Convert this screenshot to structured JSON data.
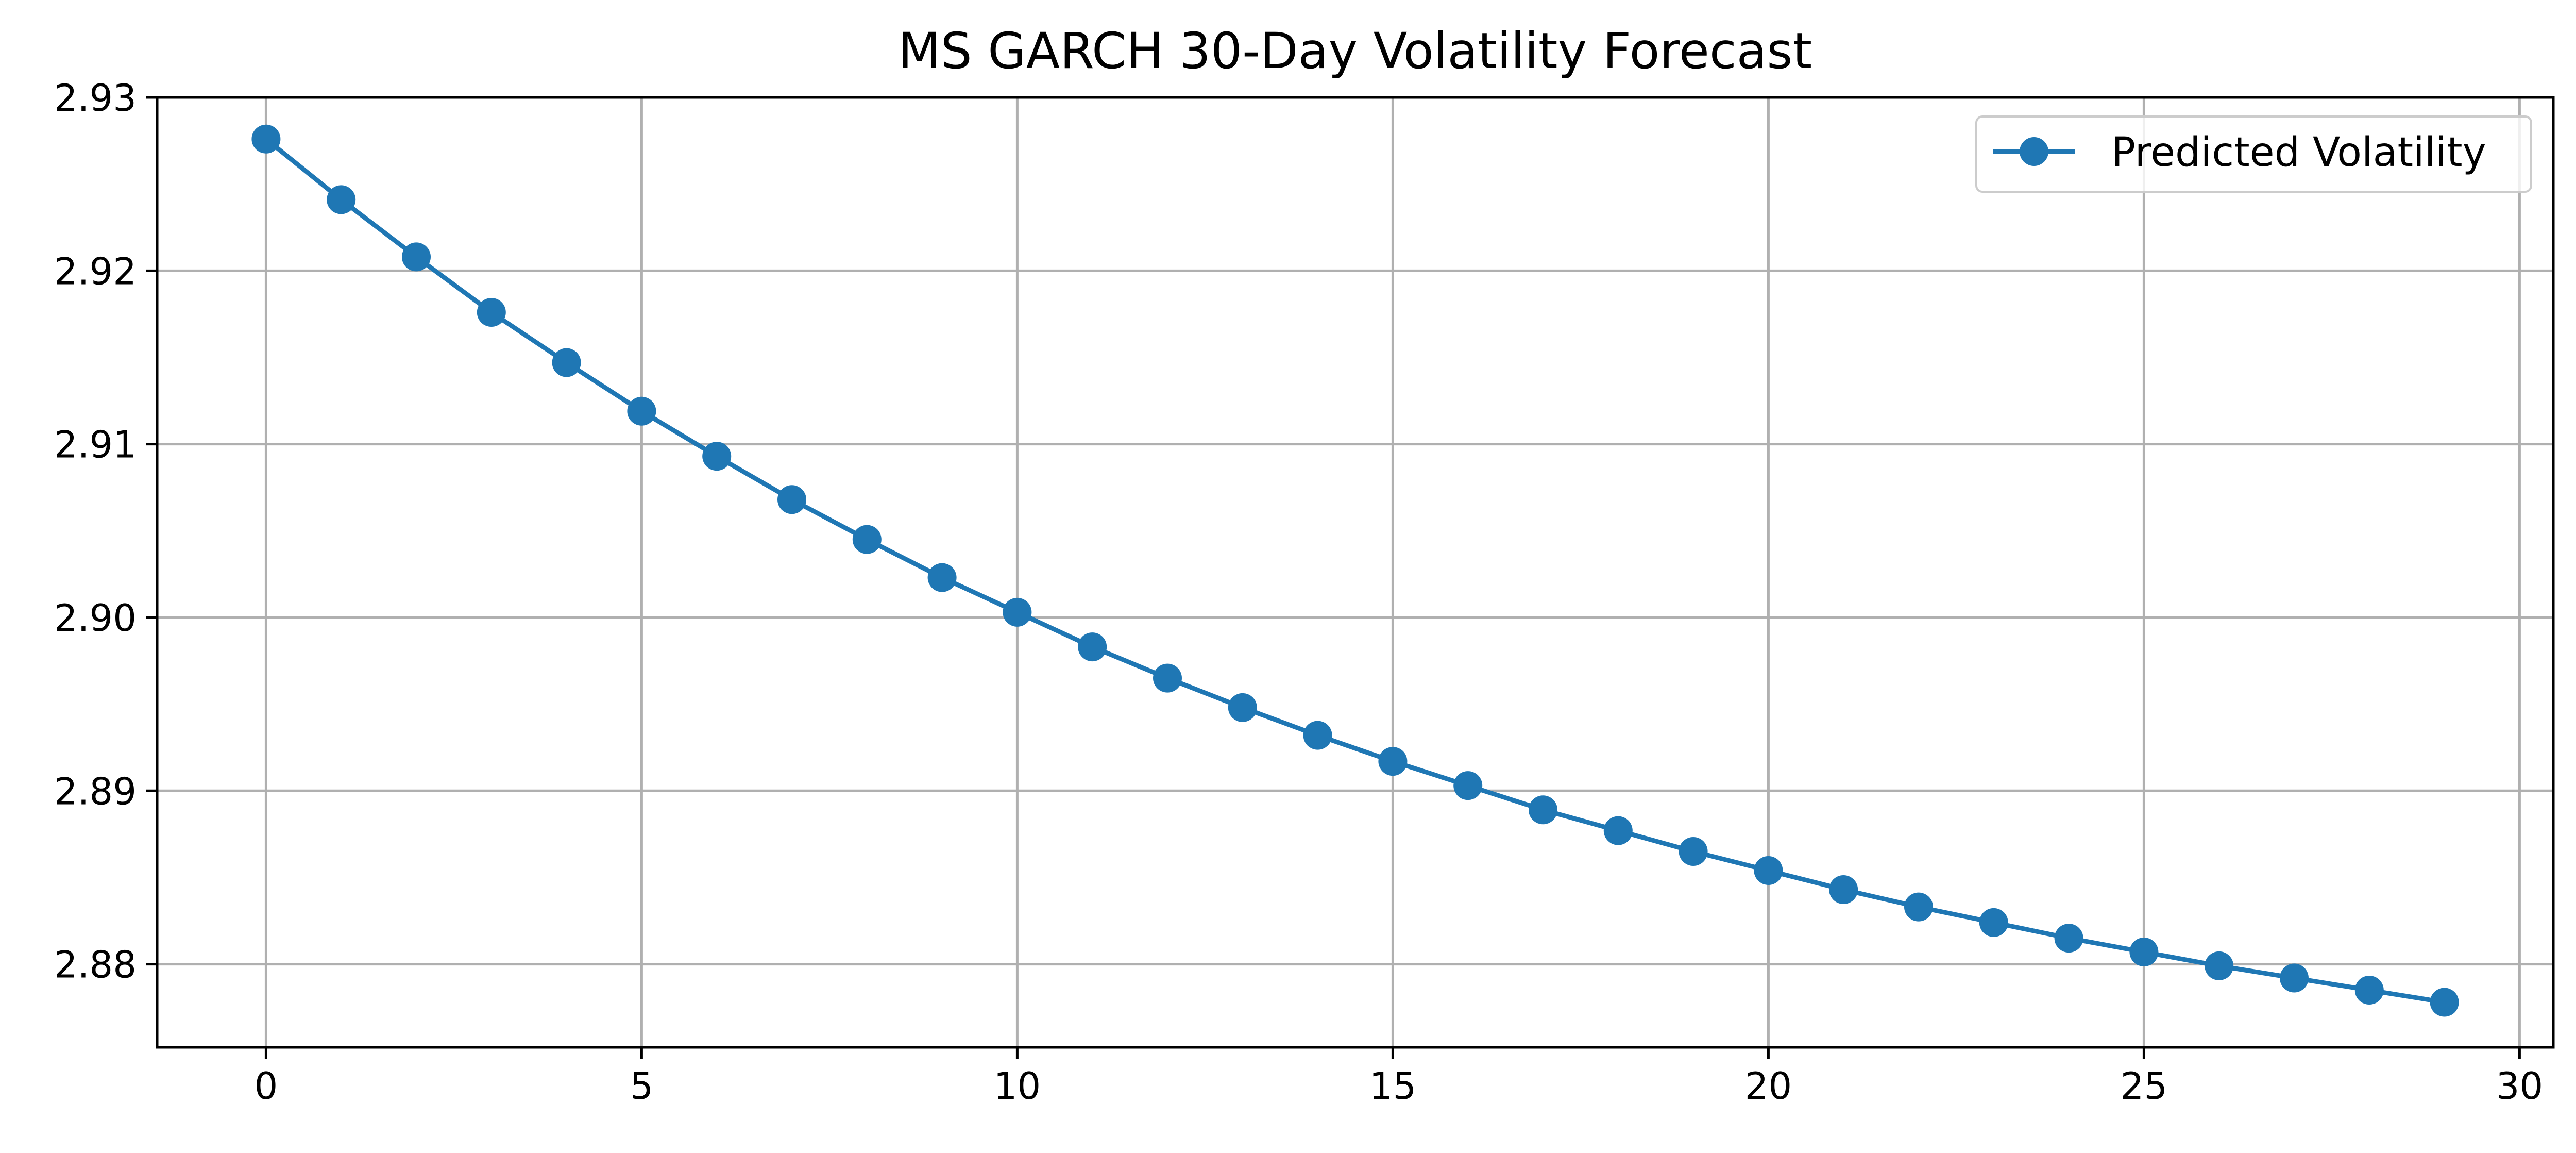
{
  "chart_data": {
    "type": "line",
    "title": "MS GARCH 30-Day Volatility Forecast",
    "xlabel": "",
    "ylabel": "",
    "xlim": [
      -1.45,
      30.45
    ],
    "ylim": [
      2.8752,
      2.93
    ],
    "x_ticks": [
      0,
      5,
      10,
      15,
      20,
      25,
      30
    ],
    "x_tick_labels": [
      "0",
      "5",
      "10",
      "15",
      "20",
      "25",
      "30"
    ],
    "y_ticks": [
      2.88,
      2.89,
      2.9,
      2.91,
      2.92,
      2.93
    ],
    "y_tick_labels": [
      "2.88",
      "2.89",
      "2.90",
      "2.91",
      "2.92",
      "2.93"
    ],
    "grid": true,
    "legend_position": "upper-right",
    "colors": {
      "series": "#1f77b4",
      "grid": "#b0b0b0",
      "axes": "#000000"
    },
    "series": [
      {
        "name": "Predicted Volatility",
        "marker": "circle",
        "x": [
          0,
          1,
          2,
          3,
          4,
          5,
          6,
          7,
          8,
          9,
          10,
          11,
          12,
          13,
          14,
          15,
          16,
          17,
          18,
          19,
          20,
          21,
          22,
          23,
          24,
          25,
          26,
          27,
          28,
          29
        ],
        "values": [
          2.9276,
          2.9241,
          2.9208,
          2.9176,
          2.9147,
          2.9119,
          2.9093,
          2.9068,
          2.9045,
          2.9023,
          2.9003,
          2.8983,
          2.8965,
          2.8948,
          2.8932,
          2.8917,
          2.8903,
          2.8889,
          2.8877,
          2.8865,
          2.8854,
          2.8843,
          2.8833,
          2.8824,
          2.8815,
          2.8807,
          2.8799,
          2.8792,
          2.8785,
          2.8778
        ]
      }
    ]
  }
}
